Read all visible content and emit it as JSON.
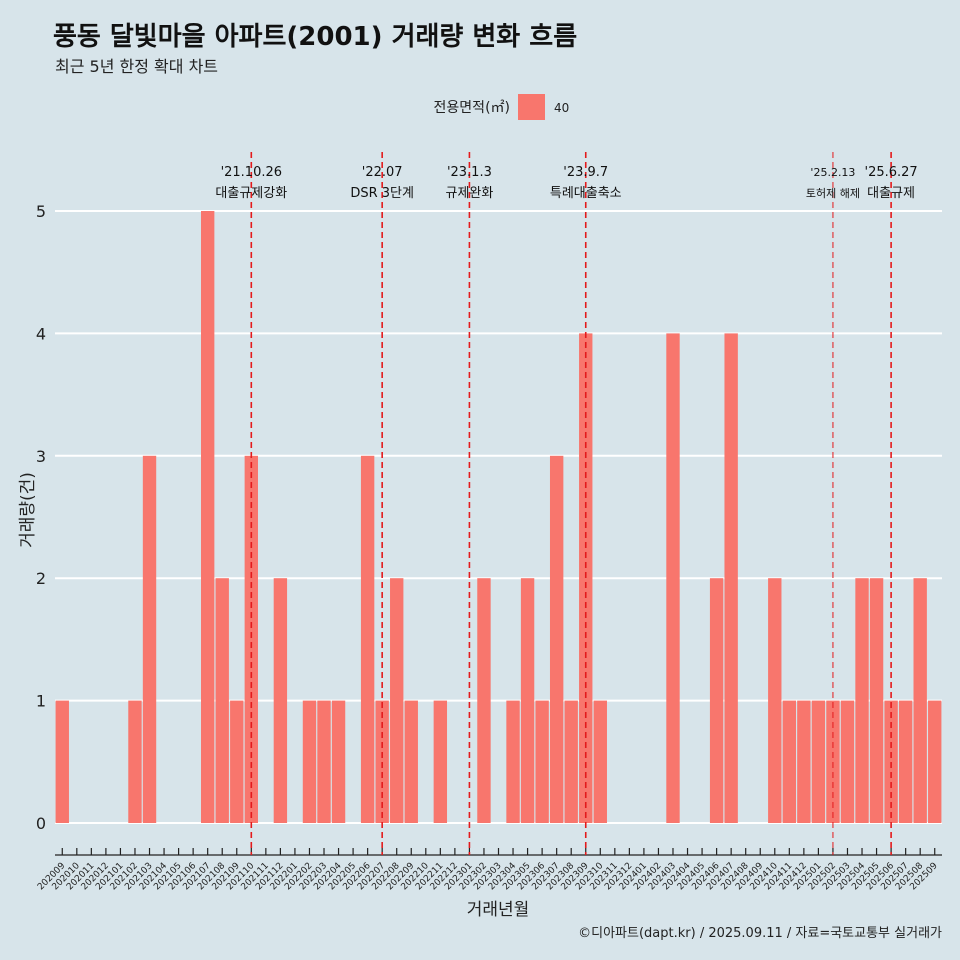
{
  "chart_data": {
    "type": "bar",
    "title": "풍동 달빛마을 아파트(2001) 거래량 변화 흐름",
    "subtitle": "최근 5년 한정 확대 차트",
    "xlabel": "거래년월",
    "ylabel": "거래량(건)",
    "caption": "©디아파트(dapt.kr) / 2025.09.11 / 자료=국토교통부 실거래가",
    "legend": {
      "title": "전용면적(㎡)",
      "position": "top",
      "entries": [
        {
          "name": "40",
          "color": "#f8766d"
        }
      ]
    },
    "ylim": [
      0,
      5
    ],
    "y_ticks": [
      0,
      1,
      2,
      3,
      4,
      5
    ],
    "grid": true,
    "categories": [
      "202009",
      "202010",
      "202011",
      "202012",
      "202101",
      "202102",
      "202103",
      "202104",
      "202105",
      "202106",
      "202107",
      "202108",
      "202109",
      "202110",
      "202111",
      "202112",
      "202201",
      "202202",
      "202203",
      "202204",
      "202205",
      "202206",
      "202207",
      "202208",
      "202209",
      "202210",
      "202211",
      "202212",
      "202301",
      "202302",
      "202303",
      "202304",
      "202305",
      "202306",
      "202307",
      "202308",
      "202309",
      "202310",
      "202311",
      "202312",
      "202401",
      "202402",
      "202403",
      "202404",
      "202405",
      "202406",
      "202407",
      "202408",
      "202409",
      "202410",
      "202411",
      "202412",
      "202501",
      "202502",
      "202503",
      "202504",
      "202505",
      "202506",
      "202507",
      "202508",
      "202509"
    ],
    "series": [
      {
        "name": "40",
        "color": "#f8766d",
        "values": [
          1,
          0,
          0,
          0,
          0,
          1,
          3,
          0,
          0,
          0,
          5,
          2,
          1,
          3,
          0,
          2,
          0,
          1,
          1,
          1,
          0,
          3,
          1,
          2,
          1,
          0,
          1,
          0,
          0,
          2,
          0,
          1,
          2,
          1,
          3,
          1,
          4,
          1,
          0,
          0,
          0,
          0,
          4,
          0,
          0,
          2,
          4,
          0,
          0,
          2,
          1,
          1,
          1,
          1,
          1,
          2,
          2,
          1,
          1,
          2,
          1
        ]
      }
    ],
    "annotations": [
      {
        "category": "202110",
        "date": "'21.10.26",
        "label": "대출규제강화",
        "small": false
      },
      {
        "category": "202207",
        "date": "'22.07",
        "label": "DSR 3단계",
        "small": false
      },
      {
        "category": "202301",
        "date": "'23.1.3",
        "label": "규제완화",
        "small": false
      },
      {
        "category": "202309",
        "date": "'23.9.7",
        "label": "특례대출축소",
        "small": false
      },
      {
        "category": "202502",
        "date": "'25.2.13",
        "label": "토허제 해제",
        "small": true
      },
      {
        "category": "202506",
        "date": "'25.6.27",
        "label": "대출규제",
        "small": false
      }
    ],
    "colors": {
      "background": "#d7e4ea",
      "bar": "#f8766d",
      "grid": "#ffffff",
      "event_line": "#e31a1c",
      "text": "#111111"
    }
  }
}
